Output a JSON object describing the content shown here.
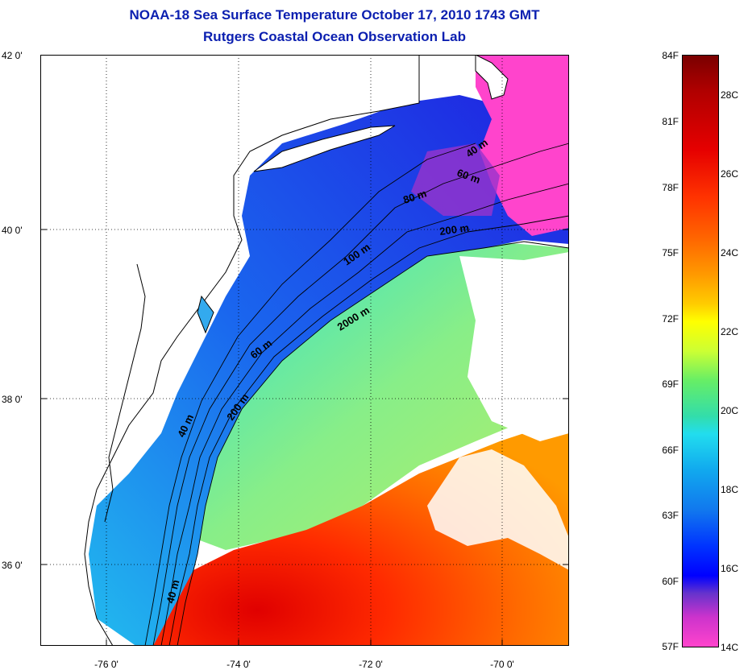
{
  "header": {
    "title_line1": "NOAA-18 Sea Surface Temperature October 17, 2010 1743 GMT",
    "title_line2": "Rutgers Coastal Ocean Observation Lab"
  },
  "axes": {
    "lat_labels": [
      "42 0'",
      "40 0'",
      "38 0'",
      "36 0'"
    ],
    "lon_labels": [
      "-76 0'",
      "-74 0'",
      "-72 0'",
      "-70 0'"
    ]
  },
  "contours": {
    "labels": [
      "40 m",
      "60 m",
      "80 m",
      "200 m",
      "100 m",
      "2000 m",
      "60 m",
      "40 m",
      "200 m",
      "40 m"
    ]
  },
  "colorbar": {
    "fahrenheit_labels": [
      "84F",
      "81F",
      "78F",
      "75F",
      "72F",
      "69F",
      "66F",
      "63F",
      "60F",
      "57F"
    ],
    "celsius_labels": [
      "28C",
      "26C",
      "24C",
      "22C",
      "20C",
      "18C",
      "16C",
      "14C"
    ]
  },
  "colors": {
    "title": "#0b1fb0",
    "land": "#ffffff",
    "cold_shelf": "#2040ff",
    "warm_gulf_stream": "#ff3300",
    "slope_water": "#88ee88"
  }
}
